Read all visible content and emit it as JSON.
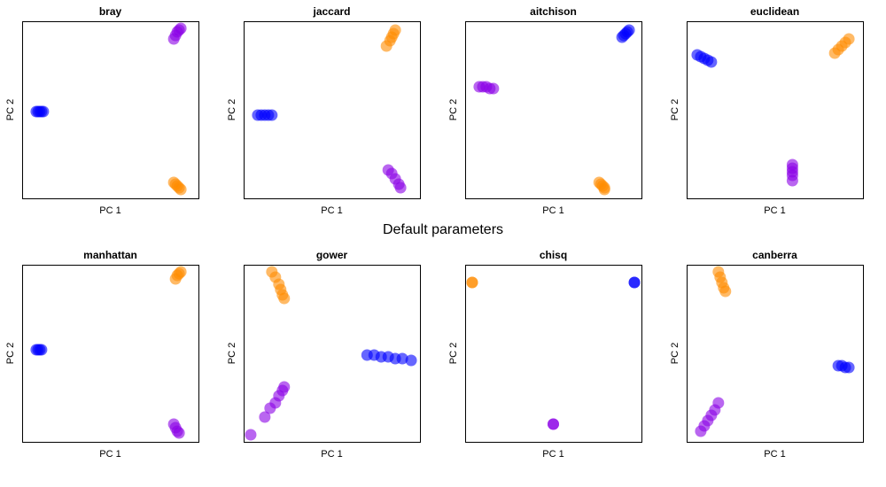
{
  "title": "Default parameters",
  "colors": {
    "group1": "#0000FF",
    "group2": "#FF8C00",
    "group3": "#8A00E6"
  },
  "chart_data": [
    {
      "type": "scatter",
      "title": "bray",
      "xlabel": "PC 1",
      "ylabel": "PC 2",
      "xlim": [
        0,
        100
      ],
      "ylim": [
        0,
        100
      ],
      "grid": false,
      "ticks": false,
      "series": [
        {
          "color": "blue",
          "points": [
            [
              8,
              49
            ],
            [
              9,
              49
            ],
            [
              10,
              49
            ],
            [
              11,
              49
            ],
            [
              12,
              49
            ]
          ]
        },
        {
          "color": "purple",
          "points": [
            [
              86,
              90
            ],
            [
              87,
              92
            ],
            [
              88,
              94
            ],
            [
              89,
              95
            ],
            [
              90,
              96
            ]
          ]
        },
        {
          "color": "orange",
          "points": [
            [
              86,
              9
            ],
            [
              87,
              8
            ],
            [
              88,
              7
            ],
            [
              89,
              6
            ],
            [
              90,
              5
            ]
          ]
        }
      ]
    },
    {
      "type": "scatter",
      "title": "jaccard",
      "xlabel": "PC 1",
      "ylabel": "PC 2",
      "xlim": [
        0,
        100
      ],
      "ylim": [
        0,
        100
      ],
      "grid": false,
      "ticks": false,
      "series": [
        {
          "color": "blue",
          "points": [
            [
              8,
              47
            ],
            [
              10,
              47
            ],
            [
              12,
              47
            ],
            [
              14,
              47
            ],
            [
              16,
              47
            ]
          ]
        },
        {
          "color": "orange",
          "points": [
            [
              81,
              86
            ],
            [
              83,
              89
            ],
            [
              84,
              91
            ],
            [
              85,
              93
            ],
            [
              86,
              95
            ]
          ]
        },
        {
          "color": "purple",
          "points": [
            [
              82,
              16
            ],
            [
              84,
              14
            ],
            [
              86,
              11
            ],
            [
              88,
              8
            ],
            [
              89,
              6
            ]
          ]
        }
      ]
    },
    {
      "type": "scatter",
      "title": "aitchison",
      "xlabel": "PC 1",
      "ylabel": "PC 2",
      "xlim": [
        0,
        100
      ],
      "ylim": [
        0,
        100
      ],
      "grid": false,
      "ticks": false,
      "series": [
        {
          "color": "blue",
          "points": [
            [
              89,
              91
            ],
            [
              90,
              92
            ],
            [
              91,
              93
            ],
            [
              92,
              94
            ],
            [
              93,
              95
            ]
          ]
        },
        {
          "color": "purple",
          "points": [
            [
              8,
              63
            ],
            [
              10,
              63
            ],
            [
              12,
              63
            ],
            [
              14,
              62
            ],
            [
              16,
              62
            ]
          ]
        },
        {
          "color": "orange",
          "points": [
            [
              76,
              9
            ],
            [
              77,
              8
            ],
            [
              78,
              7
            ],
            [
              79,
              6
            ],
            [
              79,
              5
            ]
          ]
        }
      ]
    },
    {
      "type": "scatter",
      "title": "euclidean",
      "xlabel": "PC 1",
      "ylabel": "PC 2",
      "xlim": [
        0,
        100
      ],
      "ylim": [
        0,
        100
      ],
      "grid": false,
      "ticks": false,
      "series": [
        {
          "color": "blue",
          "points": [
            [
              6,
              81
            ],
            [
              8,
              80
            ],
            [
              10,
              79
            ],
            [
              12,
              78
            ],
            [
              14,
              77
            ]
          ]
        },
        {
          "color": "orange",
          "points": [
            [
              84,
              82
            ],
            [
              86,
              84
            ],
            [
              88,
              86
            ],
            [
              90,
              88
            ],
            [
              92,
              90
            ]
          ]
        },
        {
          "color": "purple",
          "points": [
            [
              60,
              19
            ],
            [
              60,
              17
            ],
            [
              60,
              15
            ],
            [
              60,
              13
            ],
            [
              60,
              10
            ]
          ]
        }
      ]
    },
    {
      "type": "scatter",
      "title": "manhattan",
      "xlabel": "PC 1",
      "ylabel": "PC 2",
      "xlim": [
        0,
        100
      ],
      "ylim": [
        0,
        100
      ],
      "grid": false,
      "ticks": false,
      "series": [
        {
          "color": "blue",
          "points": [
            [
              8,
              52
            ],
            [
              9,
              52
            ],
            [
              10,
              52
            ],
            [
              11,
              52
            ]
          ]
        },
        {
          "color": "orange",
          "points": [
            [
              87,
              92
            ],
            [
              88,
              94
            ],
            [
              89,
              95
            ],
            [
              90,
              96
            ]
          ]
        },
        {
          "color": "purple",
          "points": [
            [
              86,
              10
            ],
            [
              87,
              8
            ],
            [
              88,
              6
            ],
            [
              89,
              5
            ]
          ]
        }
      ]
    },
    {
      "type": "scatter",
      "title": "gower",
      "xlabel": "PC 1",
      "ylabel": "PC 2",
      "xlim": [
        0,
        100
      ],
      "ylim": [
        0,
        100
      ],
      "grid": false,
      "ticks": false,
      "series": [
        {
          "color": "orange",
          "points": [
            [
              16,
              96
            ],
            [
              18,
              93
            ],
            [
              20,
              89
            ],
            [
              21,
              86
            ],
            [
              22,
              83
            ],
            [
              23,
              81
            ]
          ]
        },
        {
          "color": "blue",
          "points": [
            [
              70,
              49
            ],
            [
              74,
              49
            ],
            [
              78,
              48
            ],
            [
              82,
              48
            ],
            [
              86,
              47
            ],
            [
              90,
              47
            ],
            [
              95,
              46
            ]
          ]
        },
        {
          "color": "purple",
          "points": [
            [
              4,
              4
            ],
            [
              12,
              14
            ],
            [
              15,
              19
            ],
            [
              18,
              22
            ],
            [
              20,
              26
            ],
            [
              22,
              29
            ],
            [
              23,
              31
            ]
          ]
        }
      ]
    },
    {
      "type": "scatter",
      "title": "chisq",
      "xlabel": "PC 1",
      "ylabel": "PC 2",
      "xlim": [
        0,
        100
      ],
      "ylim": [
        0,
        100
      ],
      "grid": false,
      "ticks": false,
      "series": [
        {
          "color": "orange",
          "points": [
            [
              4,
              90
            ],
            [
              4,
              90
            ]
          ]
        },
        {
          "color": "blue",
          "points": [
            [
              96,
              90
            ],
            [
              96,
              90
            ]
          ]
        },
        {
          "color": "purple",
          "points": [
            [
              50,
              10
            ],
            [
              50,
              10
            ]
          ]
        }
      ]
    },
    {
      "type": "scatter",
      "title": "canberra",
      "xlabel": "PC 1",
      "ylabel": "PC 2",
      "xlim": [
        0,
        100
      ],
      "ylim": [
        0,
        100
      ],
      "grid": false,
      "ticks": false,
      "series": [
        {
          "color": "orange",
          "points": [
            [
              18,
              96
            ],
            [
              19,
              93
            ],
            [
              20,
              90
            ],
            [
              21,
              87
            ],
            [
              22,
              85
            ]
          ]
        },
        {
          "color": "blue",
          "points": [
            [
              86,
              43
            ],
            [
              88,
              43
            ],
            [
              90,
              42
            ],
            [
              92,
              42
            ]
          ]
        },
        {
          "color": "purple",
          "points": [
            [
              8,
              6
            ],
            [
              10,
              9
            ],
            [
              12,
              12
            ],
            [
              14,
              15
            ],
            [
              16,
              18
            ],
            [
              18,
              22
            ]
          ]
        }
      ]
    }
  ]
}
